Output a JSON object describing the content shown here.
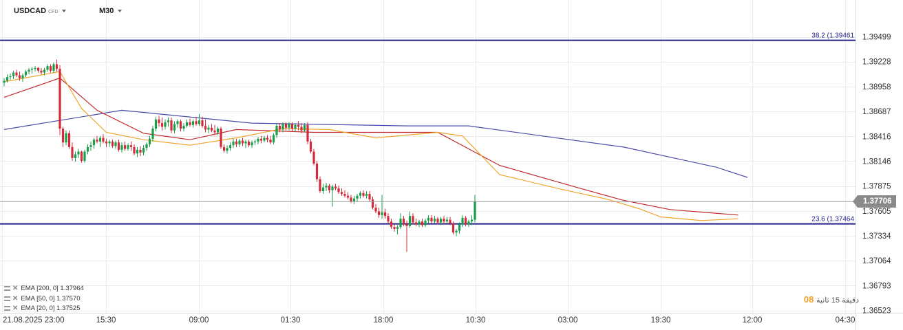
{
  "header": {
    "symbol": "USDCAD",
    "instrument_type": "CFD",
    "timeframe": "M30"
  },
  "legend": [
    {
      "label": "EMA  [200, 0]  1.37964"
    },
    {
      "label": "EMA  [50, 0]  1.37570"
    },
    {
      "label": "EMA  [20, 0]  1.37525"
    }
  ],
  "countdown": {
    "value": "08",
    "rtl_text": "دقيقة 15 ثانية"
  },
  "current_price": "1.37706",
  "fib_levels": [
    {
      "label": "38.2 (1.39461",
      "value": 1.39461
    },
    {
      "label": "23.6 (1.37464",
      "value": 1.37464
    }
  ],
  "colors": {
    "bull": "#1a9e4a",
    "bear": "#d42a3a",
    "ema200": "#4a4aa8",
    "ema50": "#c0282d",
    "ema20": "#f1a42a",
    "fib": "#23238a",
    "current_line": "#9a9a9a",
    "grid": "#ececec"
  },
  "chart_data": {
    "type": "candlestick",
    "y_ticks": [
      "1.39499",
      "1.39228",
      "1.38958",
      "1.38687",
      "1.38416",
      "1.38146",
      "1.37875",
      "1.37605",
      "1.37334",
      "1.37064",
      "1.36793",
      "1.36523"
    ],
    "ylim": [
      1.36523,
      1.39499
    ],
    "x_labels": [
      "21.08.2025  23:00",
      "15:30",
      "09:00",
      "01:30",
      "18:00",
      "10:30",
      "03:00",
      "19:30",
      "12:00",
      "04:30"
    ],
    "grid": true,
    "candles": [
      [
        1.39,
        1.3905,
        1.3896,
        1.3902
      ],
      [
        1.3902,
        1.3909,
        1.39,
        1.3906
      ],
      [
        1.3906,
        1.391,
        1.3903,
        1.3907
      ],
      [
        1.3907,
        1.3913,
        1.3904,
        1.3911
      ],
      [
        1.3911,
        1.3914,
        1.3906,
        1.3908
      ],
      [
        1.3908,
        1.3912,
        1.3902,
        1.3905
      ],
      [
        1.3905,
        1.391,
        1.3901,
        1.3908
      ],
      [
        1.3908,
        1.3914,
        1.3906,
        1.3912
      ],
      [
        1.3912,
        1.3916,
        1.3909,
        1.3914
      ],
      [
        1.3914,
        1.3917,
        1.391,
        1.3915
      ],
      [
        1.3915,
        1.3918,
        1.3912,
        1.3916
      ],
      [
        1.3916,
        1.3917,
        1.3911,
        1.3913
      ],
      [
        1.3913,
        1.3916,
        1.3909,
        1.3911
      ],
      [
        1.3911,
        1.3916,
        1.3908,
        1.3914
      ],
      [
        1.3914,
        1.392,
        1.3912,
        1.3918
      ],
      [
        1.3918,
        1.392,
        1.3911,
        1.3913
      ],
      [
        1.3913,
        1.3922,
        1.3911,
        1.392
      ],
      [
        1.392,
        1.3925,
        1.3912,
        1.3915
      ],
      [
        1.3915,
        1.3919,
        1.3843,
        1.385
      ],
      [
        1.385,
        1.3852,
        1.383,
        1.3835
      ],
      [
        1.3835,
        1.3848,
        1.3832,
        1.3845
      ],
      [
        1.3845,
        1.3848,
        1.3828,
        1.383
      ],
      [
        1.383,
        1.3835,
        1.3815,
        1.3818
      ],
      [
        1.3818,
        1.3825,
        1.3814,
        1.3822
      ],
      [
        1.3822,
        1.3828,
        1.3818,
        1.3825
      ],
      [
        1.3825,
        1.3826,
        1.3813,
        1.3815
      ],
      [
        1.3815,
        1.3827,
        1.3813,
        1.3825
      ],
      [
        1.3825,
        1.3833,
        1.3822,
        1.383
      ],
      [
        1.383,
        1.3836,
        1.3826,
        1.3832
      ],
      [
        1.3832,
        1.384,
        1.3828,
        1.3838
      ],
      [
        1.3838,
        1.3842,
        1.3834,
        1.3836
      ],
      [
        1.3836,
        1.3842,
        1.383,
        1.384
      ],
      [
        1.384,
        1.3844,
        1.3834,
        1.3836
      ],
      [
        1.3836,
        1.3839,
        1.383,
        1.3834
      ],
      [
        1.3834,
        1.3838,
        1.383,
        1.3836
      ],
      [
        1.3836,
        1.3838,
        1.3829,
        1.3831
      ],
      [
        1.3831,
        1.3837,
        1.3828,
        1.3835
      ],
      [
        1.3835,
        1.3838,
        1.3825,
        1.3827
      ],
      [
        1.3827,
        1.3835,
        1.3824,
        1.3832
      ],
      [
        1.3832,
        1.3836,
        1.3826,
        1.3828
      ],
      [
        1.3828,
        1.3834,
        1.3826,
        1.3832
      ],
      [
        1.3832,
        1.3836,
        1.3826,
        1.383
      ],
      [
        1.383,
        1.3833,
        1.3821,
        1.3823
      ],
      [
        1.3823,
        1.383,
        1.3819,
        1.3827
      ],
      [
        1.3827,
        1.3831,
        1.382,
        1.3824
      ],
      [
        1.3824,
        1.3832,
        1.3821,
        1.3829
      ],
      [
        1.3829,
        1.3835,
        1.3826,
        1.3833
      ],
      [
        1.3833,
        1.3842,
        1.383,
        1.3839
      ],
      [
        1.3839,
        1.3853,
        1.3836,
        1.385
      ],
      [
        1.385,
        1.3863,
        1.3847,
        1.386
      ],
      [
        1.386,
        1.3864,
        1.3852,
        1.3856
      ],
      [
        1.3856,
        1.3862,
        1.3848,
        1.3852
      ],
      [
        1.3852,
        1.386,
        1.3849,
        1.3857
      ],
      [
        1.3857,
        1.3862,
        1.3852,
        1.3859
      ],
      [
        1.3859,
        1.3862,
        1.3845,
        1.3848
      ],
      [
        1.3848,
        1.3858,
        1.3845,
        1.3855
      ],
      [
        1.3855,
        1.386,
        1.3851,
        1.3858
      ],
      [
        1.3858,
        1.386,
        1.3847,
        1.385
      ],
      [
        1.385,
        1.3856,
        1.3847,
        1.3853
      ],
      [
        1.3853,
        1.386,
        1.3851,
        1.3857
      ],
      [
        1.3857,
        1.3861,
        1.3852,
        1.3854
      ],
      [
        1.3854,
        1.386,
        1.3851,
        1.3858
      ],
      [
        1.3858,
        1.3863,
        1.3853,
        1.3855
      ],
      [
        1.3855,
        1.3866,
        1.3853,
        1.3859
      ],
      [
        1.3859,
        1.3863,
        1.3851,
        1.3853
      ],
      [
        1.3853,
        1.386,
        1.3846,
        1.3849
      ],
      [
        1.3849,
        1.3854,
        1.3845,
        1.3851
      ],
      [
        1.3851,
        1.3855,
        1.3846,
        1.3848
      ],
      [
        1.3848,
        1.3854,
        1.3843,
        1.3846
      ],
      [
        1.3846,
        1.3852,
        1.3843,
        1.385
      ],
      [
        1.385,
        1.3852,
        1.3828,
        1.383
      ],
      [
        1.383,
        1.3833,
        1.3824,
        1.3826
      ],
      [
        1.3826,
        1.3832,
        1.3823,
        1.3829
      ],
      [
        1.3829,
        1.3835,
        1.3826,
        1.3832
      ],
      [
        1.3832,
        1.3839,
        1.3829,
        1.3836
      ],
      [
        1.3836,
        1.3839,
        1.383,
        1.3833
      ],
      [
        1.3833,
        1.3839,
        1.383,
        1.3837
      ],
      [
        1.3837,
        1.384,
        1.3831,
        1.3834
      ],
      [
        1.3834,
        1.3838,
        1.3829,
        1.3836
      ],
      [
        1.3836,
        1.3838,
        1.383,
        1.3832
      ],
      [
        1.3832,
        1.3837,
        1.3829,
        1.3835
      ],
      [
        1.3835,
        1.3838,
        1.3832,
        1.3836
      ],
      [
        1.3836,
        1.3841,
        1.3833,
        1.3839
      ],
      [
        1.3839,
        1.3842,
        1.3834,
        1.3837
      ],
      [
        1.3837,
        1.3842,
        1.3835,
        1.384
      ],
      [
        1.384,
        1.3843,
        1.3835,
        1.3838
      ],
      [
        1.3838,
        1.3842,
        1.3833,
        1.3835
      ],
      [
        1.3835,
        1.3845,
        1.3833,
        1.3843
      ],
      [
        1.3843,
        1.3855,
        1.384,
        1.3853
      ],
      [
        1.3853,
        1.3856,
        1.3846,
        1.3849
      ],
      [
        1.3849,
        1.3857,
        1.3846,
        1.3855
      ],
      [
        1.3855,
        1.3857,
        1.3848,
        1.3851
      ],
      [
        1.3851,
        1.3857,
        1.3848,
        1.3855
      ],
      [
        1.3855,
        1.3857,
        1.3847,
        1.385
      ],
      [
        1.385,
        1.3856,
        1.3847,
        1.3854
      ],
      [
        1.3854,
        1.3858,
        1.3848,
        1.3852
      ],
      [
        1.3852,
        1.3856,
        1.3845,
        1.3848
      ],
      [
        1.3848,
        1.3856,
        1.3846,
        1.3854
      ],
      [
        1.3854,
        1.3857,
        1.3833,
        1.3836
      ],
      [
        1.3836,
        1.3839,
        1.3823,
        1.3825
      ],
      [
        1.3825,
        1.3828,
        1.381,
        1.3812
      ],
      [
        1.3812,
        1.3815,
        1.3792,
        1.3795
      ],
      [
        1.3795,
        1.3798,
        1.378,
        1.3782
      ],
      [
        1.3782,
        1.379,
        1.3779,
        1.3786
      ],
      [
        1.3786,
        1.3791,
        1.3782,
        1.3788
      ],
      [
        1.3788,
        1.379,
        1.378,
        1.3783
      ],
      [
        1.3783,
        1.3789,
        1.3765,
        1.3787
      ],
      [
        1.3787,
        1.379,
        1.3783,
        1.3785
      ],
      [
        1.3785,
        1.3788,
        1.3779,
        1.3781
      ],
      [
        1.3781,
        1.3785,
        1.3777,
        1.3779
      ],
      [
        1.3779,
        1.3783,
        1.3775,
        1.3777
      ],
      [
        1.3777,
        1.3781,
        1.3773,
        1.3775
      ],
      [
        1.3775,
        1.3778,
        1.3769,
        1.3771
      ],
      [
        1.3771,
        1.3777,
        1.3768,
        1.3774
      ],
      [
        1.3774,
        1.3779,
        1.3771,
        1.3777
      ],
      [
        1.3777,
        1.3782,
        1.3774,
        1.378
      ],
      [
        1.378,
        1.3783,
        1.3775,
        1.3777
      ],
      [
        1.3777,
        1.3782,
        1.3774,
        1.3779
      ],
      [
        1.3779,
        1.3782,
        1.3771,
        1.3773
      ],
      [
        1.3773,
        1.3776,
        1.3762,
        1.3764
      ],
      [
        1.3764,
        1.3768,
        1.3758,
        1.376
      ],
      [
        1.376,
        1.3764,
        1.3753,
        1.3756
      ],
      [
        1.3756,
        1.3778,
        1.3752,
        1.3759
      ],
      [
        1.3759,
        1.3763,
        1.3752,
        1.3755
      ],
      [
        1.3755,
        1.3758,
        1.3747,
        1.3749
      ],
      [
        1.3749,
        1.3752,
        1.3741,
        1.3743
      ],
      [
        1.3743,
        1.3746,
        1.3738,
        1.3741
      ],
      [
        1.3741,
        1.3745,
        1.3735,
        1.3743
      ],
      [
        1.3743,
        1.3758,
        1.3741,
        1.3752
      ],
      [
        1.3752,
        1.3755,
        1.3744,
        1.3746
      ],
      [
        1.3746,
        1.375,
        1.3716,
        1.3744
      ],
      [
        1.3744,
        1.376,
        1.3742,
        1.3755
      ],
      [
        1.3755,
        1.3758,
        1.3746,
        1.3748
      ],
      [
        1.3748,
        1.3752,
        1.3744,
        1.3746
      ],
      [
        1.3746,
        1.3751,
        1.3743,
        1.3749
      ],
      [
        1.3749,
        1.3752,
        1.3743,
        1.3745
      ],
      [
        1.3745,
        1.3752,
        1.3743,
        1.375
      ],
      [
        1.375,
        1.3756,
        1.3747,
        1.3753
      ],
      [
        1.3753,
        1.3756,
        1.3747,
        1.3749
      ],
      [
        1.3749,
        1.3755,
        1.3747,
        1.3752
      ],
      [
        1.3752,
        1.3754,
        1.3746,
        1.3748
      ],
      [
        1.3748,
        1.3754,
        1.3745,
        1.3752
      ],
      [
        1.3752,
        1.3755,
        1.3746,
        1.3749
      ],
      [
        1.3749,
        1.3754,
        1.3747,
        1.3751
      ],
      [
        1.3751,
        1.3754,
        1.3745,
        1.3747
      ],
      [
        1.3747,
        1.3749,
        1.3735,
        1.3737
      ],
      [
        1.3737,
        1.3741,
        1.3733,
        1.3739
      ],
      [
        1.3739,
        1.3748,
        1.3736,
        1.3746
      ],
      [
        1.3746,
        1.3756,
        1.3743,
        1.3753
      ],
      [
        1.3753,
        1.3755,
        1.3744,
        1.3746
      ],
      [
        1.3746,
        1.3751,
        1.3743,
        1.3749
      ],
      [
        1.3749,
        1.3756,
        1.3745,
        1.3751
      ],
      [
        1.3751,
        1.3778,
        1.3748,
        1.3771
      ]
    ],
    "series": [
      {
        "name": "EMA [200, 0]",
        "color": "#4a4aa8",
        "points": [
          [
            0,
            1.3849
          ],
          [
            38,
            1.387
          ],
          [
            80,
            1.3856
          ],
          [
            130,
            1.3853
          ],
          [
            150,
            1.3853
          ],
          [
            200,
            1.383
          ],
          [
            230,
            1.3808
          ],
          [
            240,
            1.3797
          ]
        ]
      },
      {
        "name": "EMA [50, 0]",
        "color": "#c0282d",
        "points": [
          [
            0,
            1.3884
          ],
          [
            18,
            1.3905
          ],
          [
            30,
            1.387
          ],
          [
            45,
            1.3845
          ],
          [
            60,
            1.3838
          ],
          [
            75,
            1.3849
          ],
          [
            100,
            1.3846
          ],
          [
            140,
            1.3846
          ],
          [
            160,
            1.381
          ],
          [
            185,
            1.3786
          ],
          [
            200,
            1.3772
          ],
          [
            215,
            1.3762
          ],
          [
            237,
            1.3756
          ]
        ]
      },
      {
        "name": "EMA [20, 0]",
        "color": "#f1a42a",
        "points": [
          [
            0,
            1.3901
          ],
          [
            18,
            1.3912
          ],
          [
            25,
            1.3872
          ],
          [
            33,
            1.3846
          ],
          [
            45,
            1.3838
          ],
          [
            60,
            1.3832
          ],
          [
            75,
            1.384
          ],
          [
            90,
            1.385
          ],
          [
            105,
            1.3849
          ],
          [
            120,
            1.384
          ],
          [
            140,
            1.3846
          ],
          [
            148,
            1.3842
          ],
          [
            160,
            1.38
          ],
          [
            180,
            1.3784
          ],
          [
            195,
            1.3773
          ],
          [
            205,
            1.3763
          ],
          [
            212,
            1.3754
          ],
          [
            225,
            1.375
          ],
          [
            237,
            1.3752
          ]
        ]
      }
    ]
  }
}
